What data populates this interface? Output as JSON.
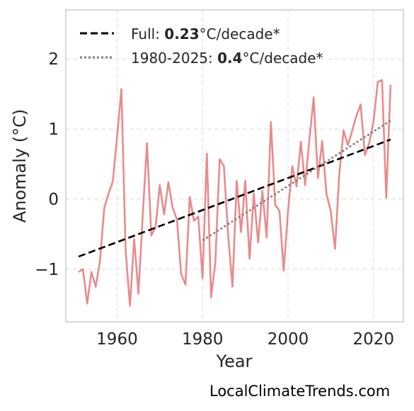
{
  "chart_data": {
    "type": "line",
    "xlabel": "Year",
    "ylabel": "Anomaly (°C)",
    "xlim": [
      1948,
      2027
    ],
    "ylim": [
      -1.75,
      2.7
    ],
    "xticks": [
      1960,
      1980,
      2000,
      2020
    ],
    "yticks": [
      -1,
      0,
      1,
      2
    ],
    "ytick_labels": [
      "−1",
      "0",
      "1",
      "2"
    ],
    "grid": true,
    "legend_position": "top-left",
    "x": [
      1951,
      1952,
      1953,
      1954,
      1955,
      1956,
      1957,
      1958,
      1959,
      1960,
      1961,
      1962,
      1963,
      1964,
      1965,
      1966,
      1967,
      1968,
      1969,
      1970,
      1971,
      1972,
      1973,
      1974,
      1975,
      1976,
      1977,
      1978,
      1979,
      1980,
      1981,
      1982,
      1983,
      1984,
      1985,
      1986,
      1987,
      1988,
      1989,
      1990,
      1991,
      1992,
      1993,
      1994,
      1995,
      1996,
      1997,
      1998,
      1999,
      2000,
      2001,
      2002,
      2003,
      2004,
      2005,
      2006,
      2007,
      2008,
      2009,
      2010,
      2011,
      2012,
      2013,
      2014,
      2015,
      2016,
      2017,
      2018,
      2019,
      2020,
      2021,
      2022,
      2023,
      2024
    ],
    "series": [
      {
        "values": [
          -1.04,
          -1.0,
          -1.49,
          -1.04,
          -1.25,
          -0.88,
          -0.13,
          0.08,
          0.25,
          0.9,
          1.57,
          -0.73,
          -1.52,
          -0.57,
          -1.35,
          -0.23,
          0.8,
          -0.52,
          -0.4,
          0.2,
          -0.22,
          0.24,
          -0.12,
          -0.29,
          -1.07,
          -1.22,
          0.03,
          -0.31,
          -0.25,
          -1.13,
          0.65,
          -1.4,
          -0.9,
          0.57,
          0.47,
          -0.52,
          -1.25,
          0.26,
          -0.47,
          0.26,
          -0.85,
          0.08,
          -0.62,
          0.12,
          -0.55,
          1.1,
          -0.08,
          -0.17,
          -1.02,
          -0.17,
          0.47,
          0.18,
          0.82,
          0.2,
          0.85,
          1.45,
          0.3,
          0.83,
          0.07,
          -0.17,
          -0.71,
          0.35,
          0.98,
          0.77,
          0.97,
          1.19,
          1.35,
          0.63,
          0.8,
          1.1,
          1.67,
          1.7,
          0.02,
          1.63
        ],
        "color": "#e88b8c"
      }
    ],
    "trendlines": [
      {
        "label_prefix": "Full: ",
        "label_value": "0.23",
        "label_suffix": "°C/decade*",
        "style": "dashed",
        "color": "#000000",
        "x": [
          1951,
          2024
        ],
        "y": [
          -0.82,
          0.85
        ]
      },
      {
        "label_prefix": "1980-2025: ",
        "label_value": "0.4",
        "label_suffix": "°C/decade*",
        "style": "dotted",
        "color": "#808080",
        "x": [
          1980,
          2024
        ],
        "y": [
          -0.59,
          1.12
        ]
      }
    ]
  },
  "credit": "LocalClimateTrends.com"
}
